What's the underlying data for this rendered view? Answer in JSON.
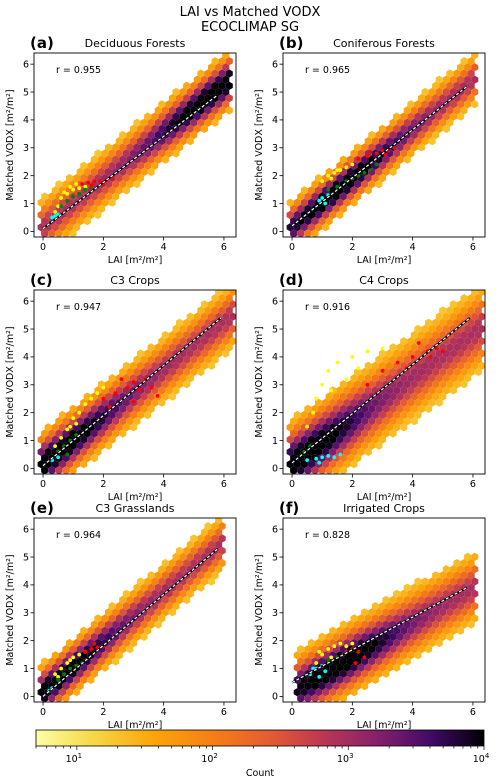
{
  "figure": {
    "title_lines": [
      "LAI vs Matched VODX",
      "ECOCLIMAP SG"
    ],
    "colorbar": {
      "label": "Count",
      "scale": "log",
      "range": [
        5,
        10000
      ],
      "tick_labels": [
        {
          "base": "10",
          "exp": "1",
          "value": 10
        },
        {
          "base": "10",
          "exp": "2",
          "value": 100
        },
        {
          "base": "10",
          "exp": "3",
          "value": 1000
        },
        {
          "base": "10",
          "exp": "4",
          "value": 10000
        }
      ],
      "colormap": "inferno_r"
    }
  },
  "chart_data": [
    {
      "type": "scatter",
      "panel_label": "(a)",
      "title": "Deciduous Forests",
      "r_text": "r = 0.955",
      "xlabel": "LAI [m²/m²]",
      "ylabel": "Matched VODX [m²/m²]",
      "xlim": [
        -0.3,
        6.4
      ],
      "ylim": [
        -0.2,
        6.4
      ],
      "xticks": [
        0,
        2,
        4,
        6
      ],
      "yticks": [
        0,
        1,
        2,
        3,
        4,
        5,
        6
      ],
      "fit_line": {
        "x": [
          0,
          5.8
        ],
        "y": [
          0.1,
          4.9
        ]
      },
      "density": {
        "slope": 0.85,
        "spread": 0.9,
        "xmin": 0,
        "xmax": 6.1,
        "hot_at": 5.7
      },
      "highlight_series": [
        {
          "color": "#ffff00",
          "points": [
            [
              0.6,
              1.2
            ],
            [
              0.8,
              1.35
            ],
            [
              1.0,
              1.5
            ],
            [
              1.2,
              1.55
            ],
            [
              1.4,
              1.6
            ],
            [
              0.7,
              1.4
            ],
            [
              0.9,
              1.6
            ],
            [
              1.1,
              1.7
            ],
            [
              0.5,
              0.9
            ],
            [
              0.4,
              0.7
            ]
          ]
        },
        {
          "color": "#008000",
          "points": [
            [
              0.6,
              0.9
            ],
            [
              0.8,
              1.1
            ],
            [
              1.0,
              1.25
            ],
            [
              1.2,
              1.35
            ],
            [
              1.4,
              1.5
            ],
            [
              1.6,
              1.6
            ]
          ]
        },
        {
          "color": "#ff0000",
          "points": [
            [
              1.3,
              1.7
            ],
            [
              1.5,
              1.75
            ],
            [
              1.7,
              1.8
            ],
            [
              1.9,
              1.8
            ],
            [
              2.1,
              1.85
            ],
            [
              2.3,
              1.9
            ],
            [
              1.6,
              1.65
            ],
            [
              2.0,
              1.7
            ]
          ]
        },
        {
          "color": "#00ffff",
          "points": [
            [
              0.3,
              0.5
            ],
            [
              0.4,
              0.55
            ],
            [
              0.5,
              0.6
            ]
          ]
        }
      ]
    },
    {
      "type": "scatter",
      "panel_label": "(b)",
      "title": "Coniferous Forests",
      "r_text": "r = 0.965",
      "xlabel": "LAI [m²/m²]",
      "ylabel": "Matched VODX [m²/m²]",
      "xlim": [
        -0.3,
        6.4
      ],
      "ylim": [
        -0.2,
        6.4
      ],
      "xticks": [
        0,
        2,
        4,
        6
      ],
      "yticks": [
        0,
        1,
        2,
        3,
        4,
        5,
        6
      ],
      "fit_line": {
        "x": [
          0,
          5.8
        ],
        "y": [
          0.2,
          5.2
        ]
      },
      "density": {
        "slope": 0.88,
        "spread": 0.8,
        "xmin": 0,
        "xmax": 6.0,
        "hot_at": 1.5
      },
      "highlight_series": [
        {
          "color": "#ffff00",
          "points": [
            [
              1.0,
              1.8
            ],
            [
              1.2,
              2.0
            ],
            [
              1.4,
              2.1
            ],
            [
              1.6,
              2.2
            ],
            [
              1.8,
              2.3
            ],
            [
              2.0,
              2.4
            ],
            [
              1.3,
              1.9
            ],
            [
              1.5,
              2.2
            ]
          ]
        },
        {
          "color": "#008000",
          "points": [
            [
              1.2,
              1.5
            ],
            [
              1.5,
              1.6
            ],
            [
              1.8,
              1.8
            ],
            [
              2.0,
              1.9
            ],
            [
              2.2,
              2.0
            ],
            [
              2.4,
              2.1
            ],
            [
              2.6,
              2.2
            ],
            [
              2.8,
              2.4
            ]
          ]
        },
        {
          "color": "#ff0000",
          "points": [
            [
              2.2,
              2.6
            ],
            [
              2.5,
              2.7
            ],
            [
              2.8,
              2.8
            ],
            [
              3.0,
              2.9
            ],
            [
              3.2,
              2.9
            ],
            [
              3.4,
              3.0
            ],
            [
              2.6,
              2.85
            ],
            [
              3.1,
              2.75
            ]
          ]
        },
        {
          "color": "#00ffff",
          "points": [
            [
              0.9,
              1.1
            ],
            [
              1.0,
              1.2
            ],
            [
              1.2,
              1.3
            ],
            [
              1.1,
              1.0
            ]
          ]
        }
      ]
    },
    {
      "type": "scatter",
      "panel_label": "(c)",
      "title": "C3 Crops",
      "r_text": "r = 0.947",
      "xlabel": "LAI [m²/m²]",
      "ylabel": "Matched VODX [m²/m²]",
      "xlim": [
        -0.3,
        6.4
      ],
      "ylim": [
        -0.2,
        6.4
      ],
      "xticks": [
        0,
        2,
        4,
        6
      ],
      "yticks": [
        0,
        1,
        2,
        3,
        4,
        5,
        6
      ],
      "fit_line": {
        "x": [
          0,
          5.9
        ],
        "y": [
          0.1,
          5.4
        ]
      },
      "density": {
        "slope": 0.85,
        "spread": 1.0,
        "xmin": 0,
        "xmax": 6.2,
        "hot_at": 0.4
      },
      "highlight_series": [
        {
          "color": "#ffff00",
          "points": [
            [
              0.4,
              0.8
            ],
            [
              0.6,
              1.1
            ],
            [
              0.8,
              1.4
            ],
            [
              1.0,
              1.8
            ],
            [
              1.2,
              2.0
            ],
            [
              1.4,
              2.3
            ],
            [
              1.6,
              2.5
            ],
            [
              1.8,
              2.7
            ],
            [
              2.0,
              2.9
            ],
            [
              0.9,
              1.5
            ],
            [
              1.1,
              1.6
            ]
          ]
        },
        {
          "color": "#ff0000",
          "points": [
            [
              2.0,
              2.5
            ],
            [
              2.4,
              2.7
            ],
            [
              2.8,
              2.9
            ],
            [
              3.0,
              3.1
            ],
            [
              3.2,
              2.8
            ],
            [
              3.4,
              3.2
            ],
            [
              3.6,
              2.9
            ],
            [
              3.8,
              2.6
            ],
            [
              2.6,
              3.2
            ],
            [
              2.2,
              2.2
            ],
            [
              3.0,
              2.4
            ]
          ]
        },
        {
          "color": "#008000",
          "points": [
            [
              0.5,
              0.6
            ],
            [
              0.7,
              0.8
            ],
            [
              0.9,
              1.0
            ],
            [
              1.1,
              1.2
            ],
            [
              0.8,
              0.5
            ]
          ]
        },
        {
          "color": "#00ffff",
          "points": [
            [
              0.3,
              0.3
            ],
            [
              0.5,
              0.4
            ]
          ]
        }
      ]
    },
    {
      "type": "scatter",
      "panel_label": "(d)",
      "title": "C4 Crops",
      "r_text": "r = 0.916",
      "xlabel": "LAI [m²/m²]",
      "ylabel": "Matched VODX [m²/m²]",
      "xlim": [
        -0.3,
        6.4
      ],
      "ylim": [
        -0.2,
        6.4
      ],
      "xticks": [
        0,
        2,
        4,
        6
      ],
      "yticks": [
        0,
        1,
        2,
        3,
        4,
        5,
        6
      ],
      "fit_line": {
        "x": [
          0,
          5.9
        ],
        "y": [
          0.2,
          5.4
        ]
      },
      "density": {
        "slope": 0.78,
        "spread": 1.3,
        "xmin": 0,
        "xmax": 6.3,
        "hot_at": 0.3
      },
      "highlight_series": [
        {
          "color": "#ffff00",
          "points": [
            [
              0.5,
              1.5
            ],
            [
              0.8,
              2.5
            ],
            [
              1.0,
              3.0
            ],
            [
              1.2,
              3.5
            ],
            [
              1.5,
              3.8
            ],
            [
              2.0,
              4.0
            ],
            [
              2.5,
              4.2
            ],
            [
              1.8,
              3.2
            ],
            [
              1.3,
              2.8
            ],
            [
              2.2,
              3.6
            ],
            [
              0.7,
              2.0
            ],
            [
              3.0,
              4.3
            ]
          ]
        },
        {
          "color": "#ff0000",
          "points": [
            [
              2.5,
              3.0
            ],
            [
              3.0,
              3.5
            ],
            [
              3.5,
              3.8
            ],
            [
              4.0,
              4.0
            ],
            [
              4.5,
              4.2
            ],
            [
              4.8,
              4.3
            ],
            [
              5.0,
              4.2
            ],
            [
              4.2,
              4.5
            ],
            [
              3.8,
              3.6
            ],
            [
              4.6,
              4.0
            ],
            [
              2.8,
              2.7
            ]
          ]
        },
        {
          "color": "#00ffff",
          "points": [
            [
              0.5,
              0.3
            ],
            [
              0.8,
              0.35
            ],
            [
              1.0,
              0.4
            ],
            [
              1.2,
              0.45
            ],
            [
              1.4,
              0.4
            ],
            [
              1.6,
              0.5
            ],
            [
              0.9,
              0.2
            ]
          ]
        },
        {
          "color": "#008000",
          "points": [
            [
              0.4,
              0.6
            ],
            [
              0.6,
              0.8
            ]
          ]
        }
      ]
    },
    {
      "type": "scatter",
      "panel_label": "(e)",
      "title": "C3 Grasslands",
      "r_text": "r = 0.964",
      "xlabel": "LAI [m²/m²]",
      "ylabel": "Matched VODX [m²/m²]",
      "xlim": [
        -0.3,
        6.4
      ],
      "ylim": [
        -0.2,
        6.4
      ],
      "xticks": [
        0,
        2,
        4,
        6
      ],
      "yticks": [
        0,
        1,
        2,
        3,
        4,
        5,
        6
      ],
      "fit_line": {
        "x": [
          0,
          5.8
        ],
        "y": [
          0.0,
          5.3
        ]
      },
      "density": {
        "slope": 0.9,
        "spread": 0.85,
        "xmin": 0,
        "xmax": 5.9,
        "hot_at": 0.3
      },
      "highlight_series": [
        {
          "color": "#ffff00",
          "points": [
            [
              0.4,
              0.8
            ],
            [
              0.6,
              1.0
            ],
            [
              0.8,
              1.2
            ],
            [
              1.0,
              1.4
            ],
            [
              1.2,
              1.5
            ],
            [
              1.4,
              1.6
            ],
            [
              0.9,
              1.3
            ],
            [
              0.5,
              0.7
            ]
          ]
        },
        {
          "color": "#008000",
          "points": [
            [
              0.5,
              0.6
            ],
            [
              0.7,
              0.8
            ],
            [
              0.9,
              1.0
            ],
            [
              1.1,
              1.1
            ],
            [
              1.3,
              1.2
            ]
          ]
        },
        {
          "color": "#ff0000",
          "points": [
            [
              1.4,
              1.6
            ],
            [
              1.6,
              1.7
            ],
            [
              1.8,
              1.75
            ],
            [
              2.0,
              1.8
            ],
            [
              1.7,
              1.9
            ]
          ]
        },
        {
          "color": "#00ffff",
          "points": [
            [
              0.2,
              0.2
            ],
            [
              0.3,
              0.3
            ]
          ]
        }
      ]
    },
    {
      "type": "scatter",
      "panel_label": "(f)",
      "title": "Irrigated Crops",
      "r_text": "r = 0.828",
      "xlabel": "LAI [m²/m²]",
      "ylabel": "Matched VODX [m²/m²]",
      "xlim": [
        -0.3,
        6.4
      ],
      "ylim": [
        -0.2,
        6.4
      ],
      "xticks": [
        0,
        2,
        4,
        6
      ],
      "yticks": [
        0,
        1,
        2,
        3,
        4,
        5,
        6
      ],
      "fit_line": {
        "x": [
          0,
          5.8
        ],
        "y": [
          0.5,
          3.9
        ]
      },
      "density": {
        "slope": 0.62,
        "spread": 1.1,
        "xmin": 0.3,
        "xmax": 6.0,
        "hot_at": 1.5
      },
      "highlight_series": [
        {
          "color": "#ffff00",
          "points": [
            [
              0.8,
              1.2
            ],
            [
              1.0,
              1.5
            ],
            [
              1.2,
              1.7
            ],
            [
              1.4,
              1.8
            ],
            [
              1.6,
              1.9
            ],
            [
              1.8,
              1.8
            ],
            [
              2.0,
              1.9
            ],
            [
              0.9,
              1.6
            ],
            [
              1.3,
              1.4
            ]
          ]
        },
        {
          "color": "#ff0000",
          "points": [
            [
              1.8,
              1.6
            ],
            [
              2.0,
              1.7
            ],
            [
              2.2,
              1.6
            ],
            [
              2.4,
              1.4
            ],
            [
              2.1,
              1.2
            ]
          ]
        },
        {
          "color": "#00ffff",
          "points": [
            [
              0.6,
              0.8
            ],
            [
              0.8,
              1.0
            ],
            [
              0.9,
              0.7
            ],
            [
              1.0,
              1.1
            ],
            [
              0.7,
              1.0
            ],
            [
              1.1,
              0.9
            ]
          ]
        },
        {
          "color": "#008000",
          "points": [
            [
              1.2,
              1.3
            ],
            [
              1.5,
              1.4
            ],
            [
              1.7,
              1.5
            ]
          ]
        }
      ]
    }
  ]
}
